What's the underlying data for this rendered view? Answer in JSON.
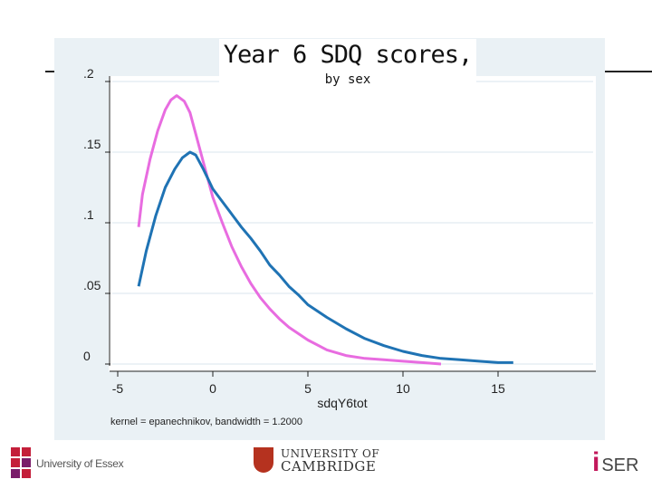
{
  "chart_data": {
    "type": "line",
    "title": "Year 6 SDQ scores,",
    "subtitle": "by sex",
    "xlabel": "sdqY6tot",
    "ylabel": "",
    "xlim": [
      -5,
      20
    ],
    "ylim": [
      0,
      0.2
    ],
    "x_ticks": [
      -5,
      0,
      5,
      10,
      15
    ],
    "x_tick_labels": [
      "-5",
      "0",
      "5",
      "10",
      "15"
    ],
    "y_ticks": [
      0,
      0.05,
      0.1,
      0.15,
      0.2
    ],
    "y_tick_labels": [
      "0",
      ".05",
      ".1",
      ".15",
      ".2"
    ],
    "note": "kernel = epanechnikov, bandwidth = 1.2000",
    "series": [
      {
        "name": "pink-series",
        "color": "#e86ce0",
        "x": [
          -3.9,
          -3.7,
          -3.3,
          -2.9,
          -2.5,
          -2.2,
          -1.9,
          -1.5,
          -1.2,
          -0.9,
          -0.6,
          -0.3,
          0,
          0.5,
          1,
          1.5,
          2,
          2.5,
          3,
          3.5,
          4,
          5,
          6,
          7,
          8,
          9,
          10,
          11,
          12
        ],
        "y": [
          0.097,
          0.12,
          0.145,
          0.165,
          0.18,
          0.187,
          0.19,
          0.186,
          0.178,
          0.163,
          0.148,
          0.133,
          0.118,
          0.1,
          0.083,
          0.069,
          0.057,
          0.047,
          0.039,
          0.032,
          0.026,
          0.017,
          0.01,
          0.006,
          0.004,
          0.003,
          0.002,
          0.001,
          0
        ]
      },
      {
        "name": "blue-series",
        "color": "#1f73b4",
        "x": [
          -3.9,
          -3.5,
          -3,
          -2.5,
          -2,
          -1.6,
          -1.2,
          -0.9,
          -0.5,
          0,
          0.5,
          1,
          1.5,
          2,
          2.5,
          3,
          3.5,
          4,
          4.5,
          5,
          6,
          7,
          8,
          9,
          10,
          11,
          12,
          13,
          14,
          15,
          15.8
        ],
        "y": [
          0.055,
          0.08,
          0.105,
          0.125,
          0.138,
          0.146,
          0.15,
          0.148,
          0.138,
          0.124,
          0.115,
          0.106,
          0.097,
          0.089,
          0.08,
          0.07,
          0.063,
          0.055,
          0.049,
          0.042,
          0.033,
          0.025,
          0.018,
          0.013,
          0.009,
          0.006,
          0.004,
          0.003,
          0.002,
          0.001,
          0.001
        ]
      }
    ]
  },
  "footer": {
    "essex_label": "University of Essex",
    "cambridge_line1": "UNIVERSITY OF",
    "cambridge_line2": "CAMBRIDGE",
    "iser_i": "i",
    "iser_rest": "SER"
  }
}
